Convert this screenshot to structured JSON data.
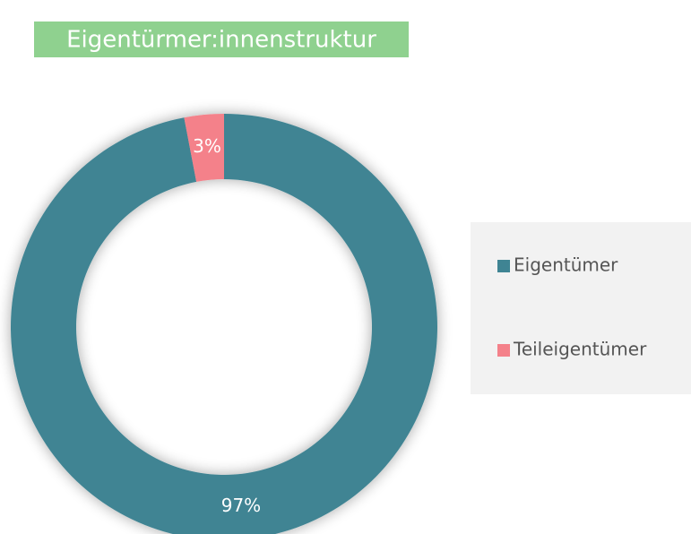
{
  "chart_data": {
    "type": "donut",
    "title": "Eigentürmer:innenstruktur",
    "categories": [
      "Eigentümer",
      "Teileigentümer"
    ],
    "values": [
      97,
      3
    ],
    "value_labels": [
      "97%",
      "3%"
    ],
    "colors": [
      "#3f8493",
      "#f4818a"
    ],
    "legend": "right"
  }
}
